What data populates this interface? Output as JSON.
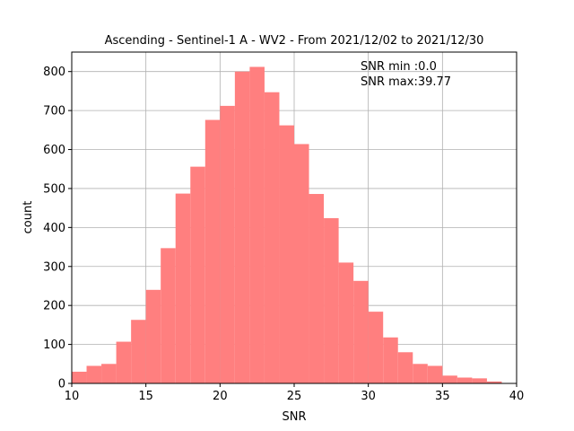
{
  "chart_data": {
    "type": "bar",
    "title": "Ascending - Sentinel-1 A - WV2 - From 2021/12/02 to 2021/12/30",
    "xlabel": "SNR",
    "ylabel": "count",
    "xlim": [
      10,
      40
    ],
    "ylim": [
      0,
      850
    ],
    "xticks": [
      10,
      15,
      20,
      25,
      30,
      35,
      40
    ],
    "yticks": [
      0,
      100,
      200,
      300,
      400,
      500,
      600,
      700,
      800
    ],
    "grid": true,
    "bar_color": "#ff7f7f",
    "bin_width": 1,
    "bins": [
      {
        "x0": 10,
        "count": 30
      },
      {
        "x0": 11,
        "count": 45
      },
      {
        "x0": 12,
        "count": 50
      },
      {
        "x0": 13,
        "count": 107
      },
      {
        "x0": 14,
        "count": 163
      },
      {
        "x0": 15,
        "count": 240
      },
      {
        "x0": 16,
        "count": 347
      },
      {
        "x0": 17,
        "count": 487
      },
      {
        "x0": 18,
        "count": 556
      },
      {
        "x0": 19,
        "count": 676
      },
      {
        "x0": 20,
        "count": 712
      },
      {
        "x0": 21,
        "count": 800
      },
      {
        "x0": 22,
        "count": 812
      },
      {
        "x0": 23,
        "count": 747
      },
      {
        "x0": 24,
        "count": 662
      },
      {
        "x0": 25,
        "count": 614
      },
      {
        "x0": 26,
        "count": 486
      },
      {
        "x0": 27,
        "count": 424
      },
      {
        "x0": 28,
        "count": 310
      },
      {
        "x0": 29,
        "count": 263
      },
      {
        "x0": 30,
        "count": 184
      },
      {
        "x0": 31,
        "count": 118
      },
      {
        "x0": 32,
        "count": 80
      },
      {
        "x0": 33,
        "count": 50
      },
      {
        "x0": 34,
        "count": 45
      },
      {
        "x0": 35,
        "count": 20
      },
      {
        "x0": 36,
        "count": 15
      },
      {
        "x0": 37,
        "count": 13
      },
      {
        "x0": 38,
        "count": 5
      },
      {
        "x0": 39,
        "count": 1
      }
    ],
    "annotations": [
      "SNR min :0.0",
      "SNR max:39.77"
    ]
  }
}
